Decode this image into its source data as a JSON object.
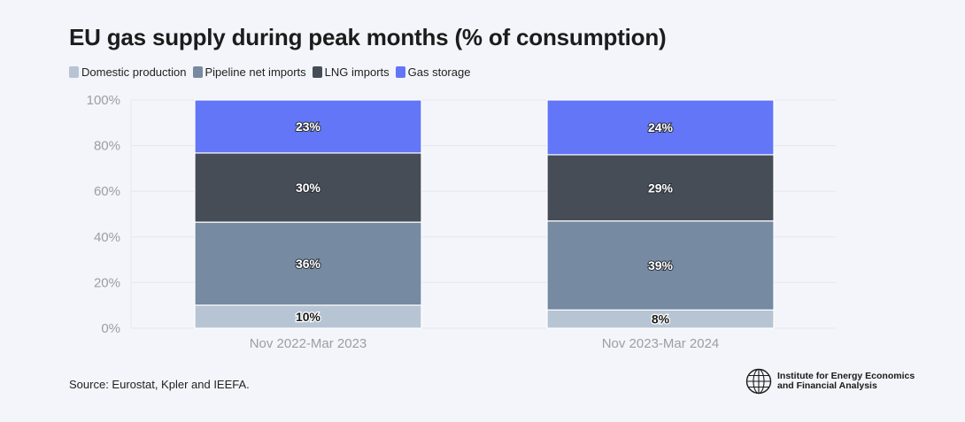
{
  "chart_data": {
    "type": "bar",
    "stacked": true,
    "title": "EU gas supply during peak months (% of consumption)",
    "categories": [
      "Nov 2022-Mar 2023",
      "Nov 2023-Mar 2024"
    ],
    "series": [
      {
        "name": "Domestic production",
        "color": "#b7c4d3",
        "values": [
          10,
          8
        ],
        "labels": [
          "10%",
          "8%"
        ]
      },
      {
        "name": "Pipeline net imports",
        "color": "#768aa1",
        "values": [
          36,
          39
        ],
        "labels": [
          "36%",
          "39%"
        ]
      },
      {
        "name": "LNG imports",
        "color": "#474d57",
        "values": [
          30,
          29
        ],
        "labels": [
          "30%",
          "29%"
        ]
      },
      {
        "name": "Gas storage",
        "color": "#6276f7",
        "values": [
          23,
          24
        ],
        "labels": [
          "23%",
          "24%"
        ]
      }
    ],
    "yticks": [
      "0%",
      "20%",
      "40%",
      "60%",
      "80%",
      "100%"
    ],
    "ylim": [
      0,
      100
    ],
    "xlabel": "",
    "ylabel": "",
    "grid": true,
    "legend": "top-left"
  },
  "footer": {
    "source": "Source: Eurostat, Kpler and IEEFA.",
    "org_line1": "Institute for Energy Economics",
    "org_line2": "and Financial Analysis"
  }
}
